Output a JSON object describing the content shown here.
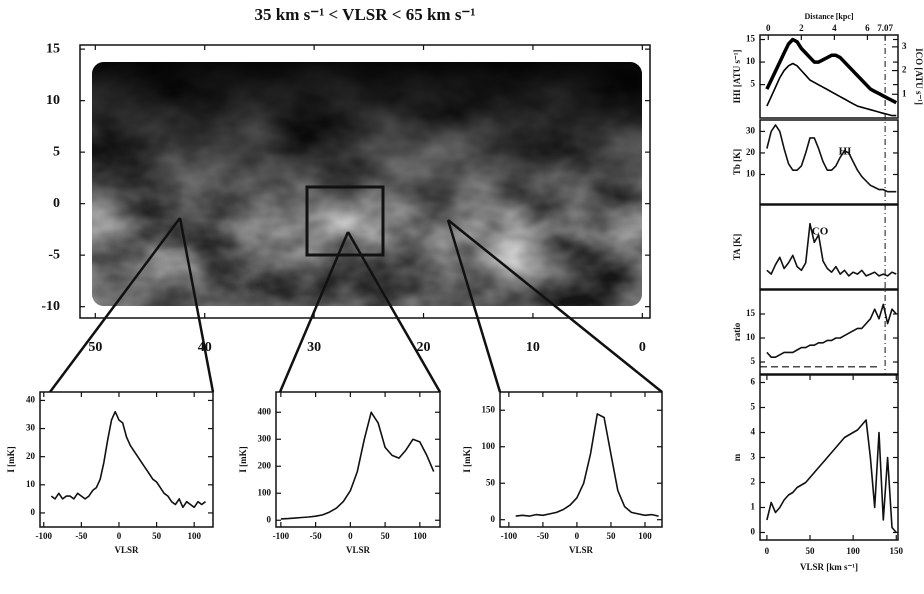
{
  "chart_data": [
    {
      "type": "map",
      "title": "35 km s⁻¹ < VLSR < 65 km s⁻¹",
      "xlim": [
        51.4,
        -0.7
      ],
      "ylim": [
        -11.1,
        15.4
      ],
      "xticks": [
        50,
        40,
        30,
        20,
        10,
        0
      ],
      "yticks": [
        15,
        10,
        5,
        0,
        -5,
        -10
      ]
    },
    {
      "type": "line",
      "ylabel": "I [mK]",
      "xlabel": "VLSR",
      "xlim": [
        -105,
        125
      ],
      "ylim": [
        -5,
        43
      ],
      "xticks": [
        -100,
        -50,
        0,
        50,
        100
      ],
      "yticks": [
        0,
        10,
        20,
        30,
        40
      ],
      "x": [
        -90,
        -85,
        -80,
        -75,
        -70,
        -65,
        -60,
        -55,
        -50,
        -45,
        -40,
        -35,
        -30,
        -25,
        -20,
        -15,
        -10,
        -5,
        0,
        5,
        10,
        15,
        20,
        25,
        30,
        35,
        40,
        45,
        50,
        55,
        60,
        65,
        70,
        75,
        80,
        85,
        90,
        95,
        100,
        105,
        110,
        115
      ],
      "series": [
        {
          "color": "#111111",
          "values": [
            6,
            5,
            7,
            5,
            6,
            6,
            5,
            7,
            6,
            5,
            6,
            8,
            9,
            12,
            18,
            26,
            33,
            36,
            33,
            32,
            27,
            24,
            22,
            20,
            18,
            16,
            14,
            12,
            11,
            9,
            7,
            6,
            4,
            3,
            5,
            2,
            4,
            3,
            2,
            4,
            3,
            4
          ]
        }
      ]
    },
    {
      "type": "line",
      "ylabel": "I [mK]",
      "xlabel": "VLSR",
      "xlim": [
        -107,
        129
      ],
      "ylim": [
        -25,
        475
      ],
      "xticks": [
        -100,
        -50,
        0,
        50,
        100
      ],
      "yticks": [
        0,
        100,
        200,
        300,
        400
      ],
      "x": [
        -100,
        -90,
        -80,
        -70,
        -60,
        -50,
        -40,
        -30,
        -20,
        -10,
        0,
        10,
        20,
        30,
        40,
        50,
        60,
        70,
        80,
        90,
        100,
        110,
        120
      ],
      "series": [
        {
          "color": "#111111",
          "values": [
            5,
            6,
            8,
            10,
            12,
            15,
            20,
            30,
            45,
            70,
            110,
            180,
            300,
            400,
            360,
            270,
            240,
            230,
            260,
            300,
            290,
            240,
            180
          ]
        }
      ]
    },
    {
      "type": "line",
      "ylabel": "I [mK]",
      "xlabel": "VLSR",
      "xlim": [
        -113,
        125
      ],
      "ylim": [
        -10,
        175
      ],
      "xticks": [
        -100,
        -50,
        0,
        50,
        100
      ],
      "yticks": [
        0,
        50,
        100,
        150
      ],
      "x": [
        -90,
        -80,
        -70,
        -60,
        -50,
        -40,
        -30,
        -20,
        -10,
        0,
        10,
        20,
        30,
        40,
        50,
        60,
        70,
        80,
        90,
        100,
        110,
        120
      ],
      "series": [
        {
          "color": "#111111",
          "values": [
            5,
            6,
            5,
            7,
            6,
            8,
            10,
            14,
            20,
            30,
            50,
            90,
            145,
            140,
            90,
            40,
            18,
            10,
            8,
            6,
            7,
            5
          ]
        }
      ]
    },
    {
      "type": "line",
      "ylabel": "IHI [ATU s⁻¹]",
      "y2label": "ICO [ATU s⁻¹]",
      "x2label": "Distance [kpc]",
      "xlim": [
        -8,
        152
      ],
      "ylim": [
        -2.4,
        16
      ],
      "y2lim": [
        0,
        3.5
      ],
      "x2lim": [
        -0.5,
        7.85
      ],
      "yticks": [
        5,
        10,
        15
      ],
      "y2ticks": [
        1,
        2,
        3
      ],
      "x2ticks": [
        0,
        2,
        4,
        6,
        7.07
      ],
      "x": [
        0,
        5,
        10,
        15,
        20,
        25,
        30,
        35,
        40,
        45,
        50,
        55,
        60,
        65,
        70,
        75,
        80,
        85,
        90,
        95,
        100,
        105,
        110,
        115,
        120,
        125,
        130,
        135,
        140,
        145,
        150
      ],
      "series": [
        {
          "color": "#000000",
          "values": [
            4,
            6,
            8,
            10,
            12,
            14,
            15,
            14.5,
            13,
            12,
            11,
            10,
            10,
            10.5,
            11,
            11.5,
            11.5,
            11,
            10,
            9,
            8,
            7,
            6,
            5,
            4,
            3.5,
            3,
            2.5,
            2,
            1.5,
            1
          ]
        },
        {
          "color": "#000000",
          "axis": "y2",
          "values": [
            0.5,
            0.9,
            1.3,
            1.7,
            2.0,
            2.2,
            2.3,
            2.2,
            2.0,
            1.8,
            1.6,
            1.5,
            1.4,
            1.3,
            1.2,
            1.1,
            1.0,
            0.9,
            0.8,
            0.7,
            0.6,
            0.5,
            0.45,
            0.4,
            0.35,
            0.3,
            0.25,
            0.2,
            0.15,
            0.1,
            0.1
          ]
        }
      ]
    },
    {
      "type": "line",
      "ylabel": "Tb [K]",
      "note": "HI",
      "xlim": [
        -8,
        152
      ],
      "ylim": [
        -3.7,
        35.3
      ],
      "yticks": [
        10,
        20,
        30
      ],
      "x": [
        0,
        5,
        10,
        15,
        20,
        25,
        30,
        35,
        40,
        45,
        50,
        55,
        60,
        65,
        70,
        75,
        80,
        85,
        90,
        95,
        100,
        105,
        110,
        115,
        120,
        125,
        130,
        135,
        140,
        145,
        150
      ],
      "series": [
        {
          "color": "#111111",
          "values": [
            22,
            30,
            33,
            30,
            22,
            15,
            12,
            12,
            14,
            20,
            27,
            27,
            22,
            16,
            12,
            12,
            14,
            18,
            21,
            20,
            16,
            12,
            9,
            7,
            5,
            4,
            3,
            3,
            2,
            2,
            2
          ]
        }
      ]
    },
    {
      "type": "line",
      "ylabel": "TA [K]",
      "note": "CO",
      "xlim": [
        -8,
        152
      ],
      "ylim": [
        -0.5,
        4
      ],
      "x": [
        0,
        5,
        10,
        15,
        20,
        25,
        30,
        35,
        40,
        45,
        50,
        55,
        60,
        65,
        70,
        75,
        80,
        85,
        90,
        95,
        100,
        105,
        110,
        115,
        120,
        125,
        130,
        135,
        140,
        145,
        150
      ],
      "series": [
        {
          "color": "#111111",
          "values": [
            0.5,
            0.3,
            0.8,
            1.2,
            0.6,
            0.9,
            1.3,
            0.7,
            0.5,
            0.9,
            3.0,
            2.0,
            2.4,
            1.0,
            0.6,
            0.4,
            0.7,
            0.3,
            0.5,
            0.2,
            0.4,
            0.3,
            0.5,
            0.2,
            0.3,
            0.4,
            0.2,
            0.3,
            0.2,
            0.4,
            0.3
          ]
        }
      ]
    },
    {
      "type": "line",
      "ylabel": "ratio",
      "hline": 4,
      "xlim": [
        -8,
        152
      ],
      "ylim": [
        2.5,
        20
      ],
      "yticks": [
        5,
        10,
        15
      ],
      "x": [
        0,
        5,
        10,
        15,
        20,
        25,
        30,
        35,
        40,
        45,
        50,
        55,
        60,
        65,
        70,
        75,
        80,
        85,
        90,
        95,
        100,
        105,
        110,
        115,
        120,
        125,
        130,
        135,
        140,
        145,
        150
      ],
      "series": [
        {
          "color": "#111111",
          "values": [
            7,
            6,
            6,
            6.5,
            7,
            7,
            7,
            7.5,
            8,
            8,
            8.5,
            8.5,
            9,
            9,
            9.5,
            9.5,
            10,
            10,
            10.5,
            11,
            11.5,
            12,
            12,
            13,
            14,
            16,
            14,
            17,
            13,
            16,
            15
          ]
        }
      ]
    },
    {
      "type": "line",
      "ylabel": "m",
      "xlabel": "VLSR [km s⁻¹]",
      "xlim": [
        -8,
        152
      ],
      "ylim": [
        -0.3,
        6.3
      ],
      "yticks": [
        0,
        1,
        2,
        3,
        4,
        5,
        6
      ],
      "xticks": [
        0,
        50,
        100,
        150
      ],
      "x": [
        0,
        5,
        10,
        15,
        20,
        25,
        30,
        35,
        40,
        45,
        50,
        55,
        60,
        65,
        70,
        75,
        80,
        85,
        90,
        95,
        100,
        105,
        110,
        115,
        120,
        125,
        130,
        135,
        140,
        145,
        150
      ],
      "series": [
        {
          "color": "#111111",
          "values": [
            0.5,
            1.2,
            0.8,
            1,
            1.3,
            1.5,
            1.6,
            1.8,
            1.9,
            2,
            2.2,
            2.4,
            2.6,
            2.8,
            3.0,
            3.2,
            3.4,
            3.6,
            3.8,
            3.9,
            4,
            4.1,
            4.3,
            4.5,
            3,
            1,
            4,
            0.5,
            3,
            0.2,
            0
          ]
        }
      ]
    }
  ]
}
